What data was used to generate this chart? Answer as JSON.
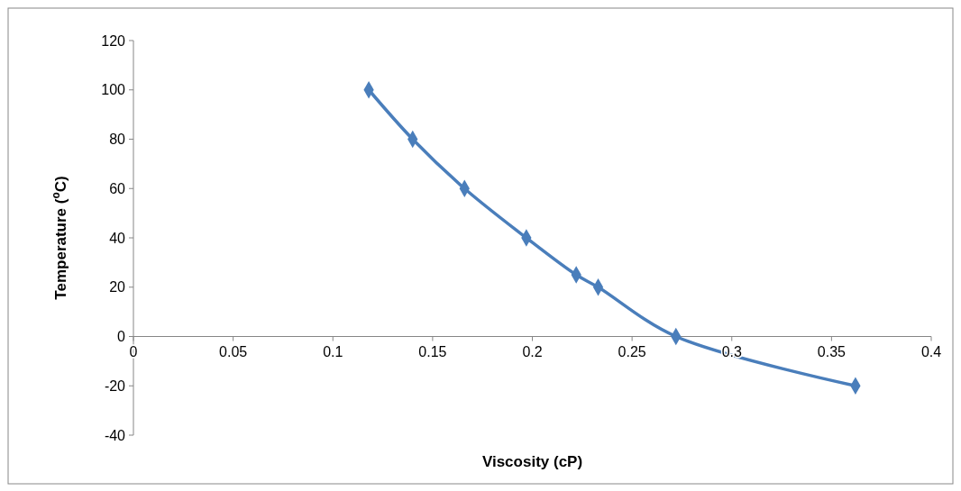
{
  "chart_data": {
    "type": "line",
    "xlabel": "Viscosity (cP)",
    "ylabel": "Temperature ($^{o}$C)",
    "xlim": [
      0,
      0.4
    ],
    "xticks": [
      0,
      0.05,
      0.1,
      0.15,
      0.2,
      0.25,
      0.3,
      0.35,
      0.4
    ],
    "ylim": [
      -40,
      120
    ],
    "yticks": [
      -40,
      -20,
      0,
      20,
      40,
      60,
      80,
      100,
      120
    ],
    "series": [
      {
        "color": "#4a7ebb",
        "x": [
          0.118,
          0.14,
          0.166,
          0.197,
          0.222,
          0.233,
          0.272,
          0.362
        ],
        "values": [
          100,
          80,
          60,
          40,
          25,
          20,
          0,
          -20
        ]
      }
    ],
    "marker": "diamond",
    "line_style": "solid",
    "grid": false
  }
}
